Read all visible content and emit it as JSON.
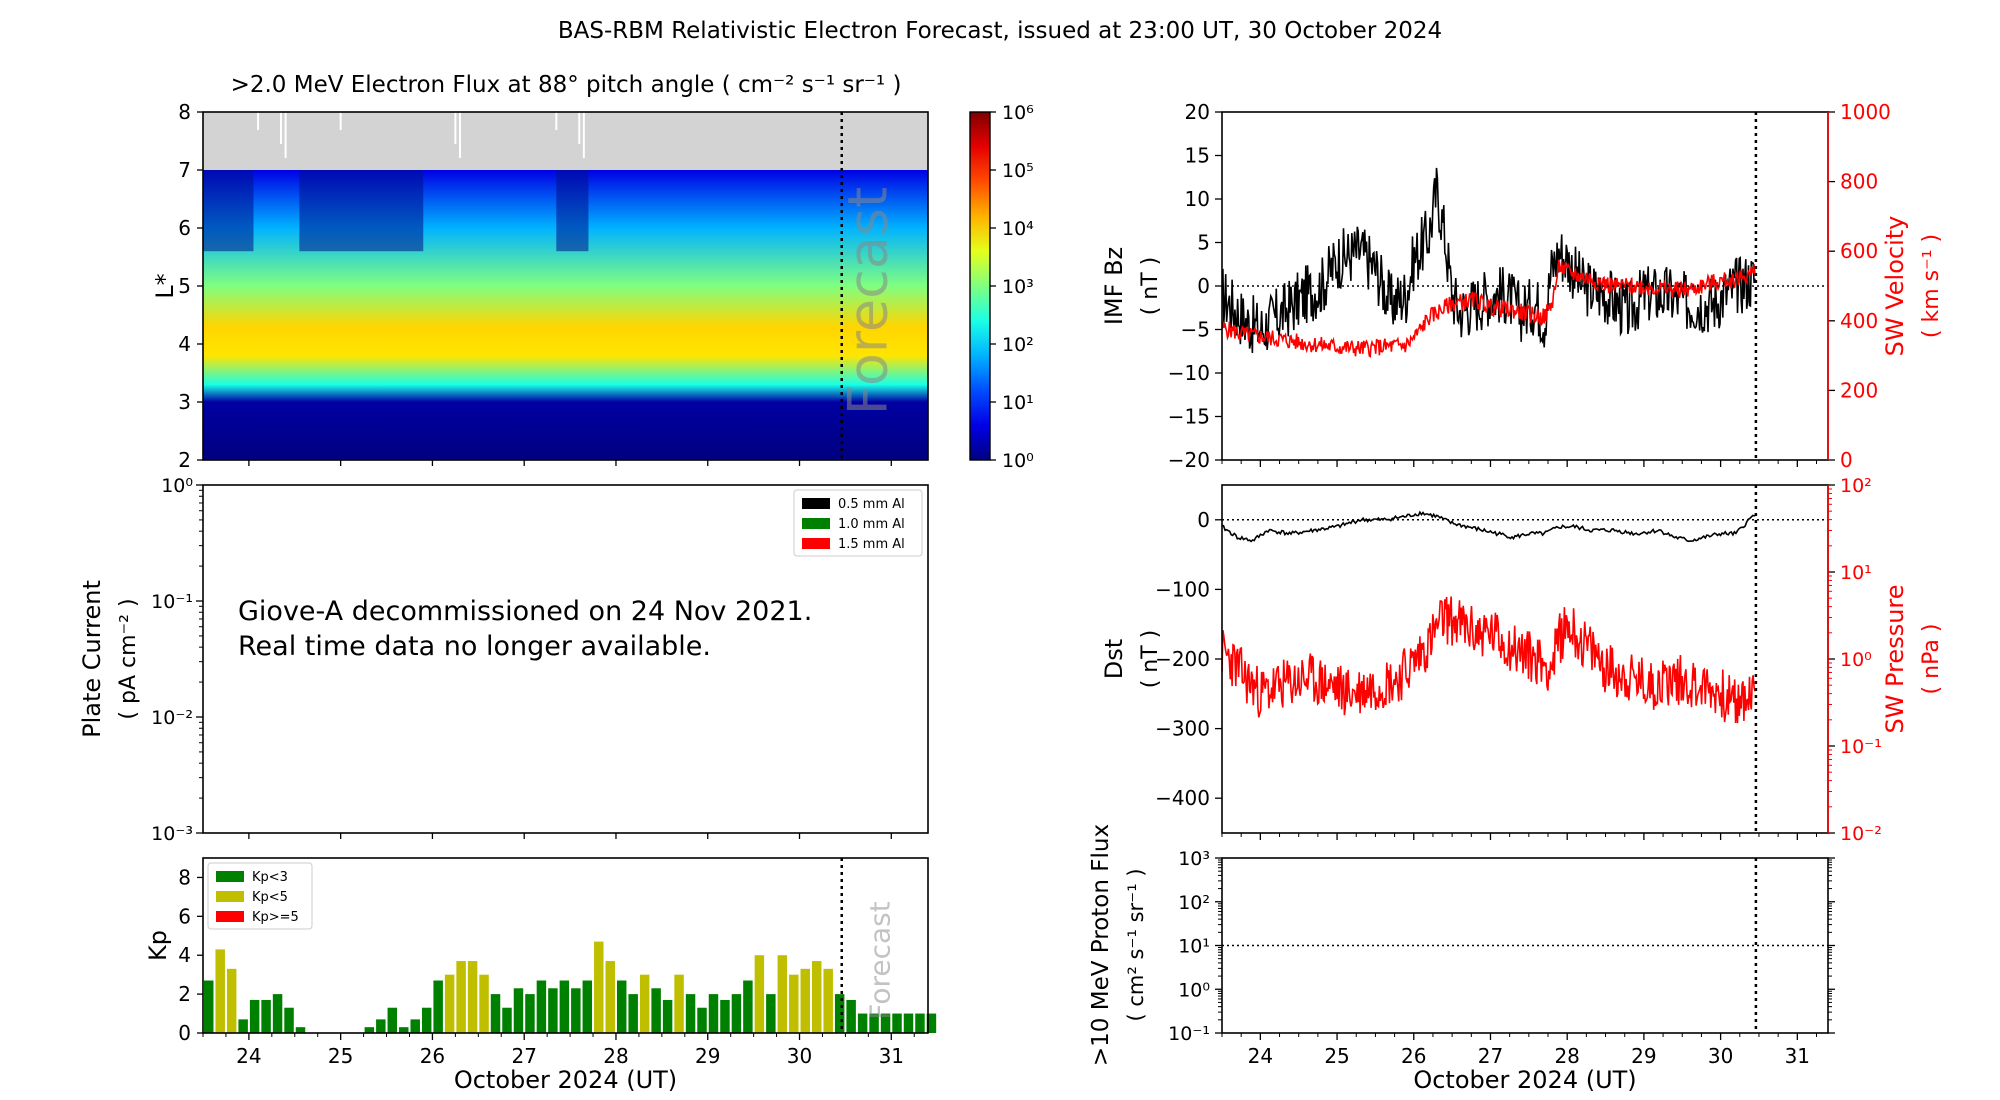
{
  "title": "BAS-RBM Relativistic Electron Forecast, issued at 23:00 UT, 30 October 2024",
  "colors": {
    "grey_mask": "#d3d3d3",
    "kp_low": "#008000",
    "kp_mid": "#bfbf00",
    "kp_high": "#ff0000",
    "solar_wind": "#ff0000",
    "forecast_text": "#bbbbbb"
  },
  "chart_data": [
    {
      "id": "flux",
      "type": "heatmap",
      "title": ">2.0 MeV Electron Flux at 88° pitch angle ( cm⁻² s⁻¹ sr⁻¹ )",
      "ylabel": "L*",
      "ylim": [
        2,
        8
      ],
      "yticks": [
        "2",
        "3",
        "4",
        "5",
        "6",
        "7",
        "8"
      ],
      "xlim_days": [
        23.5,
        31.4
      ],
      "forecast_start_day": 30.46,
      "forecast_label": "Forecast",
      "outer_limit_L": 7.0,
      "colorbar": {
        "scale": "log",
        "range": [
          1,
          1000000
        ],
        "tick_labels": [
          "10⁰",
          "10¹",
          "10²",
          "10³",
          "10⁴",
          "10⁵",
          "10⁶"
        ]
      },
      "description_profile": [
        {
          "L": 2.0,
          "log_flux": 0.0
        },
        {
          "L": 3.0,
          "log_flux": 0.2
        },
        {
          "L": 3.3,
          "log_flux": 2.4
        },
        {
          "L": 3.8,
          "log_flux": 3.9
        },
        {
          "L": 4.3,
          "log_flux": 4.0
        },
        {
          "L": 5.0,
          "log_flux": 3.0
        },
        {
          "L": 6.0,
          "log_flux": 1.8
        },
        {
          "L": 7.0,
          "log_flux": 0.6
        }
      ]
    },
    {
      "id": "plate_current",
      "type": "line",
      "ylabel": "Plate Current",
      "ylabel_units": "( pA cm⁻² )",
      "yscale": "log",
      "ylim": [
        0.001,
        1
      ],
      "ytick_labels": [
        "10⁻³",
        "10⁻²",
        "10⁻¹",
        "10⁰"
      ],
      "legend": [
        "0.5 mm Al",
        "1.0 mm Al",
        "1.5 mm Al"
      ],
      "legend_position": "top-right",
      "message_lines": [
        "Giove-A decommissioned on 24 Nov 2021.",
        "Real time data no longer available."
      ]
    },
    {
      "id": "kp",
      "type": "bar",
      "ylabel": "Kp",
      "ylim": [
        0,
        9
      ],
      "yticks": [
        "0",
        "2",
        "4",
        "6",
        "8"
      ],
      "xlim_days": [
        23.5,
        31.4
      ],
      "xlabel": "October 2024 (UT)",
      "xtick_labels": [
        "24",
        "25",
        "26",
        "27",
        "28",
        "29",
        "30",
        "31"
      ],
      "legend": [
        "Kp<3",
        "Kp<5",
        "Kp>=5"
      ],
      "legend_position": "top-left",
      "forecast_label": "Forecast",
      "start_day": 23.5,
      "bin_days": 0.125,
      "values": [
        2.7,
        4.3,
        3.3,
        0.7,
        1.7,
        1.7,
        2.0,
        1.3,
        0.3,
        0,
        0,
        0,
        0,
        0,
        0.3,
        0.7,
        1.3,
        0.3,
        0.7,
        1.3,
        2.7,
        3.0,
        3.7,
        3.7,
        3.0,
        2.0,
        1.3,
        2.3,
        2.0,
        2.7,
        2.3,
        2.7,
        2.3,
        2.7,
        4.7,
        3.7,
        2.7,
        2.0,
        3.0,
        2.3,
        1.7,
        3.0,
        2.0,
        1.3,
        2.0,
        1.7,
        2.0,
        2.7,
        4.0,
        2.0,
        4.0,
        3.0,
        3.3,
        3.7,
        3.3,
        2.0,
        1.7,
        1.0,
        1.0,
        1.0,
        1.0,
        1.0,
        1.0,
        1.0
      ]
    },
    {
      "id": "imf_sw",
      "type": "line",
      "ylabel": "IMF Bz",
      "ylabel_units": "( nT )",
      "ylim": [
        -20,
        20
      ],
      "yticks": [
        "−20",
        "−15",
        "−10",
        "−5",
        "0",
        "5",
        "10",
        "15",
        "20"
      ],
      "y2label": "SW Velocity",
      "y2label_units": "( km s⁻¹ )",
      "y2lim": [
        0,
        1000
      ],
      "y2ticks": [
        "0",
        "200",
        "400",
        "600",
        "800",
        "1000"
      ],
      "xlim_days": [
        23.5,
        31.4
      ],
      "data_end_day": 30.46,
      "series": [
        {
          "name": "IMF Bz",
          "color": "#000000",
          "x": [
            23.5,
            23.8,
            24.0,
            24.3,
            24.6,
            24.8,
            25.0,
            25.3,
            25.5,
            25.7,
            25.9,
            26.0,
            26.2,
            26.3,
            26.4,
            26.5,
            26.6,
            26.8,
            27.0,
            27.2,
            27.4,
            27.6,
            27.7,
            27.8,
            27.9,
            28.0,
            28.2,
            28.5,
            28.8,
            29.0,
            29.3,
            29.6,
            29.9,
            30.2,
            30.46
          ],
          "y": [
            -1,
            -4,
            -5,
            -3,
            -1,
            0,
            3,
            4,
            2,
            -2,
            -1,
            3,
            6,
            11,
            6,
            -1,
            -3,
            -2,
            -1,
            -1,
            -3,
            -2,
            -4,
            2,
            4,
            3,
            0,
            -1,
            -3,
            -1,
            -1,
            -2,
            -2,
            0,
            1
          ]
        },
        {
          "name": "SW Velocity",
          "color": "#ff0000",
          "x": [
            23.5,
            23.8,
            24.0,
            24.3,
            24.6,
            24.8,
            25.0,
            25.3,
            25.6,
            25.9,
            26.0,
            26.2,
            26.5,
            26.8,
            27.0,
            27.3,
            27.5,
            27.7,
            27.8,
            27.9,
            28.0,
            28.3,
            28.6,
            29.0,
            29.3,
            29.6,
            29.9,
            30.2,
            30.46
          ],
          "y": [
            380,
            360,
            355,
            345,
            335,
            330,
            325,
            320,
            325,
            330,
            350,
            410,
            450,
            460,
            440,
            430,
            420,
            410,
            450,
            560,
            540,
            520,
            500,
            500,
            490,
            490,
            510,
            520,
            540
          ]
        }
      ]
    },
    {
      "id": "dst_pressure",
      "type": "line",
      "ylabel": "Dst",
      "ylabel_units": "( nT )",
      "ylim": [
        -450,
        50
      ],
      "yticks": [
        "0",
        "−100",
        "−200",
        "−300",
        "−400"
      ],
      "y2label": "SW Pressure",
      "y2label_units": "( nPa )",
      "y2scale": "log",
      "y2lim": [
        0.01,
        100
      ],
      "y2tick_labels": [
        "10⁻²",
        "10⁻¹",
        "10⁰",
        "10¹",
        "10²"
      ],
      "xlim_days": [
        23.5,
        31.4
      ],
      "data_end_day": 30.46,
      "series": [
        {
          "name": "Dst",
          "color": "#000000",
          "x": [
            23.5,
            23.7,
            23.9,
            24.1,
            24.4,
            24.7,
            25.0,
            25.3,
            25.6,
            25.9,
            26.1,
            26.3,
            26.5,
            26.7,
            26.9,
            27.1,
            27.3,
            27.5,
            27.7,
            27.9,
            28.1,
            28.3,
            28.6,
            28.9,
            29.2,
            29.4,
            29.6,
            29.8,
            30.0,
            30.2,
            30.46
          ],
          "y": [
            -10,
            -25,
            -30,
            -15,
            -20,
            -15,
            -10,
            0,
            0,
            5,
            10,
            5,
            -5,
            -10,
            -15,
            -20,
            -25,
            -20,
            -20,
            -10,
            -10,
            -15,
            -15,
            -20,
            -15,
            -25,
            -30,
            -25,
            -20,
            -20,
            10
          ]
        },
        {
          "name": "SW Pressure",
          "color": "#ff0000",
          "x": [
            23.5,
            23.8,
            24.0,
            24.3,
            24.6,
            24.9,
            25.2,
            25.5,
            25.8,
            26.0,
            26.2,
            26.4,
            26.6,
            26.8,
            27.0,
            27.2,
            27.4,
            27.6,
            27.8,
            28.0,
            28.2,
            28.5,
            28.8,
            29.1,
            29.4,
            29.7,
            30.0,
            30.2,
            30.46
          ],
          "y": [
            1.2,
            0.6,
            0.4,
            0.5,
            0.6,
            0.5,
            0.4,
            0.5,
            0.6,
            0.9,
            1.5,
            3.0,
            2.5,
            2.0,
            2.0,
            1.5,
            1.2,
            1.0,
            0.8,
            2.5,
            1.5,
            0.8,
            0.6,
            0.5,
            0.6,
            0.5,
            0.4,
            0.3,
            0.4
          ]
        }
      ]
    },
    {
      "id": "proton_flux",
      "type": "line",
      "ylabel": ">10 MeV Proton Flux",
      "ylabel_units": "( cm² s⁻¹ sr⁻¹ )",
      "yscale": "log",
      "ylim": [
        0.1,
        1000
      ],
      "ytick_labels": [
        "10⁻¹",
        "10⁰",
        "10¹",
        "10²",
        "10³"
      ],
      "threshold": 10,
      "xlim_days": [
        23.5,
        31.4
      ],
      "xlabel": "October 2024 (UT)",
      "xtick_labels": [
        "24",
        "25",
        "26",
        "27",
        "28",
        "29",
        "30",
        "31"
      ]
    }
  ]
}
